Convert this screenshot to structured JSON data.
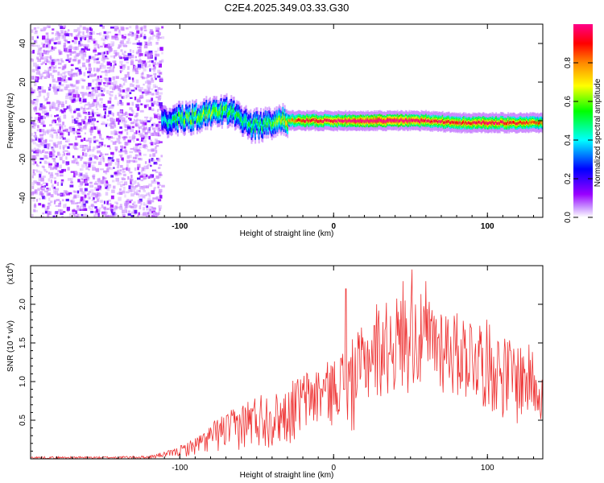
{
  "chart_data": [
    {
      "type": "heatmap",
      "title": "C2E4.2025.349.03.33.G30",
      "xlabel": "Height of straight line (km)",
      "ylabel": "Frequency (Hz)",
      "xlim": [
        -197,
        136
      ],
      "ylim": [
        -50,
        50
      ],
      "xticks": [
        -100,
        0,
        100
      ],
      "yticks": [
        -40,
        -20,
        0,
        20,
        40
      ],
      "colorbar": {
        "label": "Normalized spectral amplitude",
        "range": [
          0,
          1
        ],
        "ticks": [
          0.0,
          0.2,
          0.4,
          0.6,
          0.8
        ],
        "tick_labels": [
          "0.0",
          "0.2",
          "0.4",
          "0.6",
          "0.8"
        ],
        "colors": [
          "#ffffff",
          "#9900ff",
          "#0000ff",
          "#00ffff",
          "#00ff00",
          "#ffff00",
          "#ff8800",
          "#ff0000",
          "#ff0088"
        ]
      },
      "signal_band": {
        "noise_region_x": [
          -197,
          -112
        ],
        "center_freq": [
          [
            -112,
            0
          ],
          [
            -100,
            1
          ],
          [
            -90,
            2
          ],
          [
            -80,
            4
          ],
          [
            -70,
            5
          ],
          [
            -62,
            2
          ],
          [
            -55,
            -3
          ],
          [
            -45,
            -2
          ],
          [
            -35,
            0
          ],
          [
            -25,
            0
          ],
          [
            -10,
            0
          ],
          [
            0,
            0
          ],
          [
            20,
            0
          ],
          [
            40,
            0
          ],
          [
            60,
            0
          ],
          [
            80,
            -1
          ],
          [
            100,
            -1
          ],
          [
            120,
            -1
          ],
          [
            136,
            -1
          ]
        ],
        "peak_amplitude": [
          [
            -112,
            0.35
          ],
          [
            -100,
            0.5
          ],
          [
            -80,
            0.55
          ],
          [
            -60,
            0.45
          ],
          [
            -40,
            0.5
          ],
          [
            -20,
            0.8
          ],
          [
            0,
            0.85
          ],
          [
            20,
            0.95
          ],
          [
            40,
            0.95
          ],
          [
            60,
            0.85
          ],
          [
            80,
            0.8
          ],
          [
            100,
            0.85
          ],
          [
            120,
            0.8
          ],
          [
            136,
            0.7
          ]
        ]
      }
    },
    {
      "type": "line",
      "xlabel": "Height of straight line (km)",
      "ylabel": "SNR (10 * v/v)",
      "y_scale_label": "(x10",
      "y_scale_exponent": "4",
      "xlim": [
        -197,
        136
      ],
      "ylim": [
        0,
        2.5
      ],
      "xticks": [
        -100,
        0,
        100
      ],
      "yticks": [
        0.5,
        1.0,
        1.5,
        2.0
      ],
      "ytick_labels": [
        "0.5",
        "1.0",
        "1.5",
        "2.0"
      ],
      "series": [
        {
          "name": "SNR",
          "color": "#ee3333",
          "envelope": {
            "x": [
              -197,
              -150,
              -120,
              -105,
              -95,
              -85,
              -75,
              -65,
              -55,
              -45,
              -35,
              -25,
              -18,
              -12,
              -5,
              0,
              5,
              10,
              20,
              30,
              40,
              50,
              60,
              70,
              80,
              90,
              100,
              110,
              120,
              130,
              136
            ],
            "low": [
              0.0,
              0.0,
              0.0,
              0.02,
              0.03,
              0.05,
              0.08,
              0.1,
              0.1,
              0.12,
              0.15,
              0.2,
              0.3,
              0.35,
              0.45,
              0.4,
              0.6,
              0.2,
              0.65,
              0.75,
              0.8,
              0.85,
              0.8,
              0.8,
              0.75,
              0.7,
              0.6,
              0.5,
              0.4,
              0.5,
              0.45
            ],
            "high": [
              0.03,
              0.03,
              0.04,
              0.12,
              0.22,
              0.35,
              0.55,
              0.65,
              0.8,
              0.9,
              0.85,
              1.05,
              1.15,
              1.2,
              1.25,
              1.3,
              1.4,
              1.5,
              1.75,
              2.0,
              2.1,
              2.2,
              2.1,
              2.05,
              1.9,
              1.9,
              1.8,
              1.6,
              1.55,
              1.45,
              1.2
            ]
          },
          "spikes": [
            {
              "x": -25,
              "y": 0.98
            },
            {
              "x": 8,
              "y": 2.2
            },
            {
              "x": 28,
              "y": 2.0
            },
            {
              "x": 45,
              "y": 2.3
            },
            {
              "x": 51,
              "y": 2.45
            },
            {
              "x": 60,
              "y": 2.3
            }
          ]
        }
      ]
    }
  ]
}
